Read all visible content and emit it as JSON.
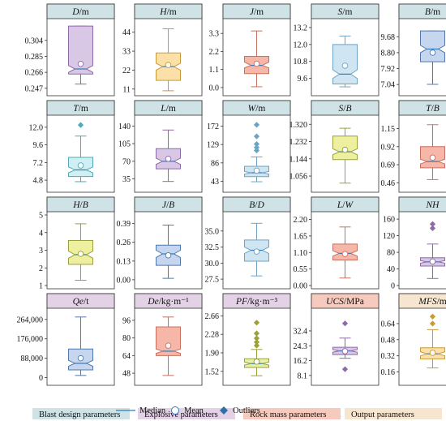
{
  "colors": {
    "blast": "#cfe3e6",
    "blast_border": "#5a8fa0",
    "blast_box": "#d7ebf0",
    "explosive": "#e3d1e6",
    "explosive_border": "#8a6a95",
    "rock": "#f6cbbd",
    "rock_border": "#c06a4e",
    "output": "#f7e6cf",
    "output_border": "#c99a55",
    "median_line": "#2f7bbf",
    "outlier": "#2f6fa8"
  },
  "legend": {
    "median": "Median",
    "mean": "Mean",
    "outliers": "Outliers",
    "blast": "Blast design parameters",
    "explosive": "Explosive parameters",
    "rock": "Rock mass parameters",
    "output": "Output parameters"
  },
  "chart_data": [
    {
      "type": "box",
      "title": "D/m",
      "category": "blast",
      "ticks": [
        "0.247",
        "0.266",
        "0.285",
        "0.304"
      ],
      "tickvals": [
        0.247,
        0.266,
        0.285,
        0.304
      ],
      "ylim": [
        0.242,
        0.326
      ],
      "q1": 0.264,
      "median": 0.27,
      "q3": 0.321,
      "whislo": 0.252,
      "whishi": 0.321,
      "mean": 0.276,
      "notch": [
        0.266,
        0.274
      ],
      "outliers": []
    },
    {
      "type": "box",
      "title": "H/m",
      "category": "blast",
      "ticks": [
        "11",
        "22",
        "33",
        "44"
      ],
      "tickvals": [
        11,
        22,
        33,
        44
      ],
      "ylim": [
        9,
        50
      ],
      "q1": 16,
      "median": 24,
      "q3": 32,
      "whislo": 10,
      "whishi": 46,
      "mean": 25,
      "notch": [
        22,
        26
      ],
      "outliers": []
    },
    {
      "type": "box",
      "title": "J/m",
      "category": "blast",
      "ticks": [
        "0.0",
        "1.1",
        "2.2",
        "3.3"
      ],
      "tickvals": [
        0,
        1.1,
        2.2,
        3.3
      ],
      "ylim": [
        -0.3,
        4.0
      ],
      "q1": 0.85,
      "median": 1.35,
      "q3": 1.9,
      "whislo": 0.05,
      "whishi": 3.45,
      "mean": 1.45,
      "notch": [
        1.2,
        1.55
      ],
      "outliers": []
    },
    {
      "type": "box",
      "title": "S/m",
      "category": "blast",
      "ticks": [
        "9.6",
        "10.8",
        "12.0",
        "13.2"
      ],
      "tickvals": [
        9.6,
        10.8,
        12.0,
        13.2
      ],
      "ylim": [
        8.6,
        13.6
      ],
      "q1": 9.2,
      "median": 9.9,
      "q3": 12.0,
      "whislo": 9.0,
      "whishi": 12.6,
      "mean": 10.5,
      "notch": [
        9.6,
        10.2
      ],
      "outliers": []
    },
    {
      "type": "box",
      "title": "B/m",
      "category": "blast",
      "ticks": [
        "7.04",
        "7.92",
        "8.80",
        "9.68"
      ],
      "tickvals": [
        7.04,
        7.92,
        8.8,
        9.68
      ],
      "ylim": [
        6.6,
        10.5
      ],
      "q1": 8.3,
      "median": 9.0,
      "q3": 10.0,
      "whislo": 7.05,
      "whishi": 10.0,
      "mean": 8.8,
      "notch": [
        8.8,
        9.2
      ],
      "outliers": []
    },
    {
      "type": "box",
      "title": "T/m",
      "category": "blast",
      "ticks": [
        "4.8",
        "7.2",
        "9.6",
        "12.0"
      ],
      "tickvals": [
        4.8,
        7.2,
        9.6,
        12.0
      ],
      "ylim": [
        3.6,
        13.2
      ],
      "q1": 5.3,
      "median": 6.2,
      "q3": 7.9,
      "whislo": 4.6,
      "whishi": 10.8,
      "mean": 6.8,
      "notch": [
        5.8,
        6.6
      ],
      "outliers": [
        12.3
      ]
    },
    {
      "type": "box",
      "title": "L/m",
      "category": "blast",
      "ticks": [
        "35",
        "70",
        "105",
        "140"
      ],
      "tickvals": [
        35,
        70,
        105,
        140
      ],
      "ylim": [
        15,
        155
      ],
      "q1": 55,
      "median": 70,
      "q3": 95,
      "whislo": 30,
      "whishi": 132,
      "mean": 75,
      "notch": [
        64,
        76
      ],
      "outliers": []
    },
    {
      "type": "box",
      "title": "W/m",
      "category": "blast",
      "ticks": [
        "43",
        "86",
        "129",
        "172"
      ],
      "tickvals": [
        43,
        86,
        129,
        172
      ],
      "ylim": [
        25,
        190
      ],
      "q1": 54,
      "median": 63,
      "q3": 78,
      "whislo": 42,
      "whishi": 100,
      "mean": 68,
      "notch": [
        60,
        66
      ],
      "outliers": [
        115,
        122,
        130,
        148,
        175
      ]
    },
    {
      "type": "box",
      "title": "S/B",
      "category": "blast",
      "ticks": [
        "1.056",
        "1.144",
        "1.232",
        "1.320"
      ],
      "tickvals": [
        1.056,
        1.144,
        1.232,
        1.32
      ],
      "ylim": [
        0.99,
        1.35
      ],
      "q1": 1.14,
      "median": 1.18,
      "q3": 1.26,
      "whislo": 1.02,
      "whishi": 1.3,
      "mean": 1.19,
      "notch": [
        1.165,
        1.195
      ],
      "outliers": []
    },
    {
      "type": "box",
      "title": "T/B",
      "category": "blast",
      "ticks": [
        "0.46",
        "0.69",
        "0.92",
        "1.15"
      ],
      "tickvals": [
        0.46,
        0.69,
        0.92,
        1.15
      ],
      "ylim": [
        0.38,
        1.28
      ],
      "q1": 0.65,
      "median": 0.73,
      "q3": 0.92,
      "whislo": 0.5,
      "whishi": 1.2,
      "mean": 0.78,
      "notch": [
        0.7,
        0.76
      ],
      "outliers": []
    },
    {
      "type": "box",
      "title": "H/B",
      "category": "blast",
      "ticks": [
        "1",
        "2",
        "3",
        "4",
        "5"
      ],
      "tickvals": [
        1,
        2,
        3,
        4,
        5
      ],
      "ylim": [
        1,
        5
      ],
      "q1": 2.2,
      "median": 2.75,
      "q3": 3.55,
      "whislo": 1.3,
      "whishi": 4.5,
      "mean": 2.8,
      "notch": [
        2.55,
        2.95
      ],
      "outliers": []
    },
    {
      "type": "box",
      "title": "J/B",
      "category": "blast",
      "ticks": [
        "0.00",
        "0.13",
        "0.26",
        "0.39"
      ],
      "tickvals": [
        0,
        0.13,
        0.26,
        0.39
      ],
      "ylim": [
        -0.04,
        0.45
      ],
      "q1": 0.1,
      "median": 0.18,
      "q3": 0.24,
      "whislo": 0.01,
      "whishi": 0.38,
      "mean": 0.17,
      "notch": [
        0.155,
        0.205
      ],
      "outliers": []
    },
    {
      "type": "box",
      "title": "B/D",
      "category": "blast",
      "ticks": [
        "27.5",
        "30.0",
        "32.5",
        "35.0"
      ],
      "tickvals": [
        27.5,
        30,
        32.5,
        35
      ],
      "ylim": [
        26.5,
        37.5
      ],
      "q1": 30.3,
      "median": 32.0,
      "q3": 33.6,
      "whislo": 28.0,
      "whishi": 36.2,
      "mean": 31.8,
      "notch": [
        31.5,
        32.5
      ],
      "outliers": []
    },
    {
      "type": "box",
      "title": "L/W",
      "category": "blast",
      "ticks": [
        "0.00",
        "0.55",
        "1.10",
        "1.65",
        "2.20"
      ],
      "tickvals": [
        0,
        0.55,
        1.1,
        1.65,
        2.2
      ],
      "ylim": [
        0,
        2.35
      ],
      "q1": 0.85,
      "median": 1.07,
      "q3": 1.38,
      "whislo": 0.25,
      "whishi": 1.95,
      "mean": 1.05,
      "notch": [
        0.98,
        1.16
      ],
      "outliers": []
    },
    {
      "type": "box",
      "title": "NH",
      "category": "blast",
      "ticks": [
        "0",
        "40",
        "80",
        "120",
        "160"
      ],
      "tickvals": [
        0,
        40,
        80,
        120,
        160
      ],
      "ylim": [
        0,
        170
      ],
      "q1": 47,
      "median": 57,
      "q3": 67,
      "whislo": 17,
      "whishi": 100,
      "mean": 58,
      "notch": [
        54,
        60
      ],
      "outliers": [
        138,
        148
      ]
    },
    {
      "type": "box",
      "title": "Qe/t",
      "category": "explosive",
      "ticks": [
        "0",
        "88,000",
        "176,000",
        "264,000"
      ],
      "tickvals": [
        0,
        88000,
        176000,
        264000
      ],
      "ylim": [
        -20000,
        300000
      ],
      "q1": 35000,
      "median": 65000,
      "q3": 130000,
      "whislo": 10000,
      "whishi": 275000,
      "mean": 88000,
      "notch": [
        52000,
        78000
      ],
      "outliers": []
    },
    {
      "type": "box",
      "title": "De/kg·m⁻¹",
      "category": "explosive",
      "ticks": [
        "48",
        "64",
        "80",
        "96"
      ],
      "tickvals": [
        48,
        64,
        80,
        96
      ],
      "ylim": [
        40,
        104
      ],
      "q1": 64,
      "median": 68,
      "q3": 90,
      "whislo": 46,
      "whishi": 99,
      "mean": 73,
      "notch": [
        66,
        70
      ],
      "outliers": []
    },
    {
      "type": "box",
      "title": "PF/kg·m⁻³",
      "category": "explosive",
      "ticks": [
        "1.52",
        "1.90",
        "2.28",
        "2.66"
      ],
      "tickvals": [
        1.52,
        1.9,
        2.28,
        2.66
      ],
      "ylim": [
        1.3,
        2.75
      ],
      "q1": 1.6,
      "median": 1.68,
      "q3": 1.78,
      "whislo": 1.43,
      "whishi": 1.97,
      "mean": 1.72,
      "notch": [
        1.65,
        1.71
      ],
      "outliers": [
        2.05,
        2.12,
        2.2,
        2.3,
        2.52
      ]
    },
    {
      "type": "box",
      "title": "UCS/MPa",
      "category": "rock",
      "ticks": [
        "8.1",
        "16.2",
        "24.3",
        "32.4"
      ],
      "tickvals": [
        8.1,
        16.2,
        24.3,
        32.4
      ],
      "ylim": [
        4.5,
        43
      ],
      "q1": 19.5,
      "median": 21.5,
      "q3": 23.5,
      "whislo": 17.5,
      "whishi": 28.5,
      "mean": 21.3,
      "notch": [
        20.8,
        22.2
      ],
      "outliers": [
        11.5,
        36.5
      ]
    },
    {
      "type": "box",
      "title": "MFS/m",
      "category": "output",
      "ticks": [
        "0.16",
        "0.32",
        "0.48",
        "0.64"
      ],
      "tickvals": [
        0.16,
        0.32,
        0.48,
        0.64
      ],
      "ylim": [
        0.06,
        0.76
      ],
      "q1": 0.29,
      "median": 0.34,
      "q3": 0.4,
      "whislo": 0.2,
      "whishi": 0.58,
      "mean": 0.35,
      "notch": [
        0.32,
        0.36
      ],
      "outliers": [
        0.64,
        0.71
      ]
    }
  ]
}
